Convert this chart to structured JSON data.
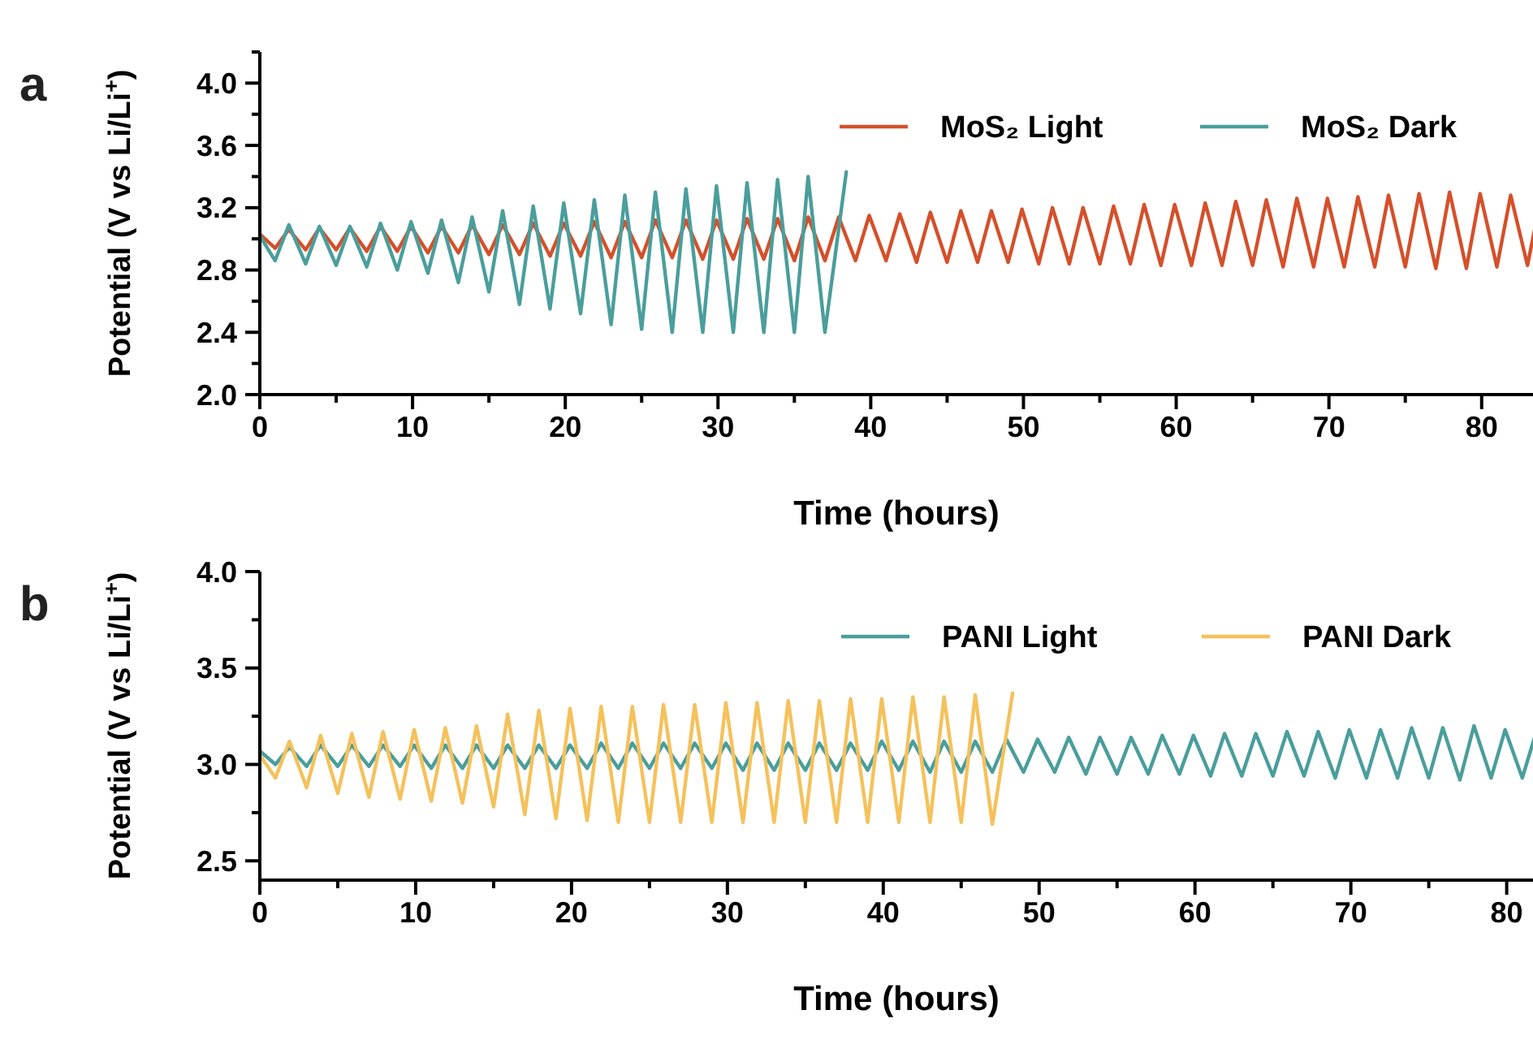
{
  "chart_data": [
    {
      "type": "line",
      "annotations": [
        "a"
      ],
      "xlabel": "Time (hours)",
      "ylabel": "Potential (V vs Li/Li$^{+}$)",
      "xlim": [
        0,
        84
      ],
      "ylim": [
        2.0,
        4.2
      ],
      "xticks": [
        0,
        {
          "value": 5,
          "label": null
        },
        10,
        {
          "value": 15,
          "label": null
        },
        20,
        {
          "value": 25,
          "label": null
        },
        30,
        {
          "value": 35,
          "label": null
        },
        40,
        {
          "value": 45,
          "label": null
        },
        50,
        {
          "value": 55,
          "label": null
        },
        60,
        {
          "value": 65,
          "label": null
        },
        70,
        {
          "value": 75,
          "label": null
        },
        80
      ],
      "yticks": [
        {
          "value": 2.0,
          "label": "2.0"
        },
        {
          "value": 2.2,
          "label": null
        },
        {
          "value": 2.4,
          "label": "2.4"
        },
        {
          "value": 2.6,
          "label": null
        },
        {
          "value": 2.8,
          "label": "2.8"
        },
        {
          "value": 3.0,
          "label": null
        },
        {
          "value": 3.2,
          "label": "3.2"
        },
        {
          "value": 3.4,
          "label": null
        },
        {
          "value": 3.6,
          "label": "3.6"
        },
        {
          "value": 3.8,
          "label": null
        },
        {
          "value": 4.0,
          "label": "4.0"
        },
        {
          "value": 4.2,
          "label": null
        }
      ],
      "legend": "top right",
      "series": [
        {
          "name": "MoS₂ Light",
          "color": "#d4502a",
          "x": [
            0,
            1,
            1.9,
            3,
            3.9,
            5,
            5.9,
            7,
            7.9,
            9,
            9.9,
            11,
            11.9,
            13,
            13.9,
            15,
            15.9,
            17,
            17.9,
            19,
            19.9,
            21,
            21.9,
            23,
            23.9,
            25,
            25.9,
            27,
            27.9,
            29,
            29.9,
            31,
            31.9,
            33,
            33.9,
            35,
            35.9,
            37,
            37.9,
            39,
            39.9,
            41,
            41.9,
            43,
            43.9,
            45,
            45.9,
            47,
            47.9,
            49,
            49.9,
            51,
            51.9,
            53,
            53.9,
            55,
            55.9,
            57,
            57.9,
            59,
            59.9,
            61,
            61.9,
            63,
            63.9,
            65,
            65.9,
            67,
            67.9,
            69,
            69.9,
            71,
            71.9,
            73,
            73.9,
            75,
            75.9,
            77,
            77.9,
            79,
            79.9,
            81,
            81.9,
            83,
            83.9
          ],
          "values": [
            3.03,
            2.94,
            3.06,
            2.93,
            3.07,
            2.93,
            3.07,
            2.92,
            3.08,
            2.92,
            3.08,
            2.91,
            3.08,
            2.91,
            3.09,
            2.9,
            3.09,
            2.9,
            3.1,
            2.89,
            3.1,
            2.89,
            3.11,
            2.88,
            3.11,
            2.88,
            3.12,
            2.88,
            3.12,
            2.87,
            3.12,
            2.87,
            3.13,
            2.87,
            3.13,
            2.86,
            3.14,
            2.86,
            3.14,
            2.86,
            3.15,
            2.86,
            3.16,
            2.85,
            3.17,
            2.85,
            3.18,
            2.85,
            3.18,
            2.85,
            3.19,
            2.84,
            3.2,
            2.84,
            3.2,
            2.84,
            3.21,
            2.84,
            3.22,
            2.83,
            3.22,
            2.83,
            3.23,
            2.83,
            3.24,
            2.83,
            3.25,
            2.82,
            3.26,
            2.82,
            3.26,
            2.82,
            3.27,
            2.82,
            3.28,
            2.82,
            3.29,
            2.81,
            3.3,
            2.81,
            3.29,
            2.82,
            3.28,
            2.83,
            3.27
          ]
        },
        {
          "name": "MoS₂ Dark",
          "color": "#4a9e9c",
          "x": [
            0,
            1,
            1.9,
            3,
            3.9,
            5,
            5.9,
            7,
            7.9,
            9,
            9.9,
            11,
            11.9,
            13,
            13.9,
            15,
            15.9,
            17,
            17.9,
            19,
            19.9,
            21,
            21.9,
            23,
            23.9,
            25,
            25.9,
            27,
            27.9,
            29,
            29.9,
            31,
            31.9,
            33,
            33.9,
            35,
            35.9,
            37,
            38.4
          ],
          "values": [
            3.02,
            2.86,
            3.09,
            2.84,
            3.08,
            2.83,
            3.08,
            2.82,
            3.1,
            2.8,
            3.11,
            2.78,
            3.12,
            2.72,
            3.14,
            2.66,
            3.18,
            2.58,
            3.21,
            2.55,
            3.23,
            2.52,
            3.25,
            2.45,
            3.28,
            2.42,
            3.3,
            2.4,
            3.32,
            2.4,
            3.34,
            2.4,
            3.36,
            2.4,
            3.38,
            2.4,
            3.4,
            2.4,
            3.43
          ]
        }
      ]
    },
    {
      "type": "line",
      "annotations": [
        "b"
      ],
      "xlabel": "Time (hours)",
      "ylabel": "Potential (V vs Li/Li$^{+}$)",
      "xlim": [
        0,
        82
      ],
      "ylim": [
        2.4,
        4.0
      ],
      "xticks": [
        0,
        {
          "value": 5,
          "label": null
        },
        10,
        {
          "value": 15,
          "label": null
        },
        20,
        {
          "value": 25,
          "label": null
        },
        30,
        {
          "value": 35,
          "label": null
        },
        40,
        {
          "value": 45,
          "label": null
        },
        50,
        {
          "value": 55,
          "label": null
        },
        60,
        {
          "value": 65,
          "label": null
        },
        70,
        {
          "value": 75,
          "label": null
        },
        80
      ],
      "yticks": [
        {
          "value": 2.5,
          "label": "2.5"
        },
        {
          "value": 2.75,
          "label": null
        },
        {
          "value": 3.0,
          "label": "3.0"
        },
        {
          "value": 3.25,
          "label": null
        },
        {
          "value": 3.5,
          "label": "3.5"
        },
        {
          "value": 3.75,
          "label": null
        },
        {
          "value": 4.0,
          "label": "4.0"
        }
      ],
      "legend": "top right",
      "series": [
        {
          "name": "PANI Light",
          "color": "#4a9e9c",
          "x": [
            0,
            1,
            1.9,
            3,
            3.9,
            5,
            5.9,
            7,
            7.9,
            9,
            9.9,
            11,
            11.9,
            13,
            13.9,
            15,
            15.9,
            17,
            17.9,
            19,
            19.9,
            21,
            21.9,
            23,
            23.9,
            25,
            25.9,
            27,
            27.9,
            29,
            29.9,
            31,
            31.9,
            33,
            33.9,
            35,
            35.9,
            37,
            37.9,
            39,
            39.9,
            41,
            41.9,
            43,
            43.9,
            45,
            45.9,
            47,
            47.9,
            49,
            49.9,
            51,
            51.9,
            53,
            53.9,
            55,
            55.9,
            57,
            57.9,
            59,
            59.9,
            61,
            61.9,
            63,
            63.9,
            65,
            65.9,
            67,
            67.9,
            69,
            69.9,
            71,
            71.9,
            73,
            73.9,
            75,
            75.9,
            77,
            77.9,
            79,
            79.9,
            81,
            81.9
          ],
          "values": [
            3.07,
            3.0,
            3.09,
            2.99,
            3.1,
            2.99,
            3.1,
            2.99,
            3.1,
            2.99,
            3.1,
            2.98,
            3.1,
            2.98,
            3.1,
            2.98,
            3.1,
            2.98,
            3.1,
            2.98,
            3.1,
            2.98,
            3.11,
            2.98,
            3.11,
            2.98,
            3.11,
            2.98,
            3.11,
            2.98,
            3.11,
            2.97,
            3.11,
            2.97,
            3.11,
            2.97,
            3.11,
            2.97,
            3.11,
            2.97,
            3.12,
            2.97,
            3.12,
            2.96,
            3.12,
            2.96,
            3.12,
            2.96,
            3.13,
            2.96,
            3.13,
            2.96,
            3.14,
            2.95,
            3.14,
            2.95,
            3.14,
            2.95,
            3.15,
            2.95,
            3.15,
            2.94,
            3.16,
            2.94,
            3.16,
            2.94,
            3.17,
            2.94,
            3.17,
            2.93,
            3.18,
            2.93,
            3.18,
            2.93,
            3.19,
            2.93,
            3.19,
            2.92,
            3.2,
            2.93,
            3.18,
            2.93,
            3.17
          ]
        },
        {
          "name": "PANI Dark",
          "color": "#f5c15b",
          "x": [
            0,
            1,
            1.9,
            3,
            3.9,
            5,
            5.9,
            7,
            7.9,
            9,
            9.9,
            11,
            11.9,
            13,
            13.9,
            15,
            15.9,
            17,
            17.9,
            19,
            19.9,
            21,
            21.9,
            23,
            23.9,
            25,
            25.9,
            27,
            27.9,
            29,
            29.9,
            31,
            31.9,
            33,
            33.9,
            35,
            35.9,
            37,
            37.9,
            39,
            39.9,
            41,
            41.9,
            43,
            43.9,
            45,
            45.9,
            47,
            48.3
          ],
          "values": [
            3.05,
            2.93,
            3.12,
            2.88,
            3.15,
            2.85,
            3.16,
            2.83,
            3.17,
            2.82,
            3.18,
            2.81,
            3.19,
            2.8,
            3.2,
            2.78,
            3.26,
            2.74,
            3.28,
            2.72,
            3.29,
            2.71,
            3.3,
            2.7,
            3.3,
            2.7,
            3.31,
            2.7,
            3.31,
            2.7,
            3.32,
            2.7,
            3.32,
            2.7,
            3.33,
            2.7,
            3.33,
            2.7,
            3.34,
            2.7,
            3.34,
            2.7,
            3.35,
            2.7,
            3.35,
            2.7,
            3.36,
            2.69,
            3.37
          ]
        }
      ]
    }
  ]
}
